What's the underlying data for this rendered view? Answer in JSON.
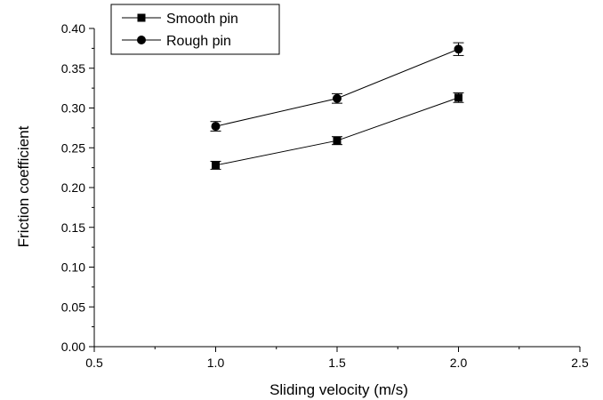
{
  "chart_data": {
    "type": "line",
    "xlabel": "Sliding velocity (m/s)",
    "ylabel": "Friction coefficient",
    "xlim": [
      0.5,
      2.5
    ],
    "ylim": [
      0.0,
      0.4
    ],
    "x_ticks": [
      "0.5",
      "1.0",
      "1.5",
      "2.0",
      "2.5"
    ],
    "y_ticks": [
      "0.00",
      "0.05",
      "0.10",
      "0.15",
      "0.20",
      "0.25",
      "0.30",
      "0.35",
      "0.40"
    ],
    "grid": false,
    "legend_position": "top-left",
    "series": [
      {
        "name": "Smooth pin",
        "marker": "square",
        "color": "#000000",
        "x": [
          1.0,
          1.5,
          2.0
        ],
        "y": [
          0.228,
          0.259,
          0.313
        ],
        "error": [
          0.005,
          0.005,
          0.006
        ]
      },
      {
        "name": "Rough pin",
        "marker": "circle",
        "color": "#000000",
        "x": [
          1.0,
          1.5,
          2.0
        ],
        "y": [
          0.277,
          0.312,
          0.374
        ],
        "error": [
          0.006,
          0.006,
          0.008
        ]
      }
    ]
  }
}
